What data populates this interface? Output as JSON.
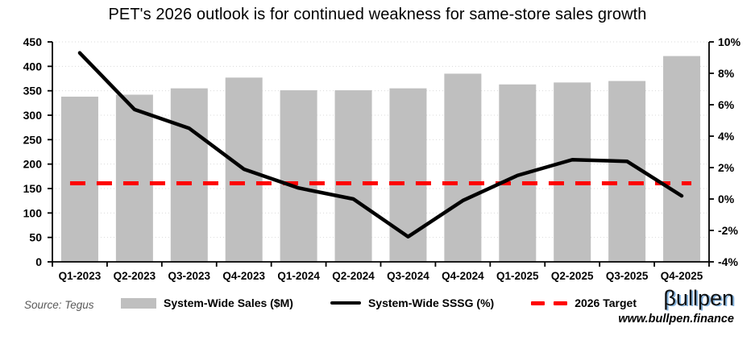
{
  "title": "PET's 2026 outlook is for continued weakness for same-store sales growth",
  "source": "Source: Tegus",
  "branding": {
    "logo": "βullpen",
    "url": "www.bullpen.finance"
  },
  "colors": {
    "bar": "#BFBFBF",
    "line": "#000000",
    "target": "#FF0000",
    "gridline": "#D9D9D9",
    "axis": "#000000"
  },
  "chart_data": {
    "type": "bar",
    "subtype": "bar+line combo, dual axis",
    "title": "PET's 2026 outlook is for continued weakness for same-store sales growth",
    "categories": [
      "Q1-2023",
      "Q2-2023",
      "Q3-2023",
      "Q4-2023",
      "Q1-2024",
      "Q2-2024",
      "Q3-2024",
      "Q4-2024",
      "Q1-2025",
      "Q2-2025",
      "Q3-2025",
      "Q4-2025"
    ],
    "series": [
      {
        "name": "System-Wide Sales ($M)",
        "type": "bar",
        "axis": "left",
        "color": "#BFBFBF",
        "values": [
          338,
          342,
          355,
          377,
          351,
          351,
          355,
          385,
          363,
          367,
          370,
          421
        ]
      },
      {
        "name": "System-Wide SSSG (%)",
        "type": "line",
        "axis": "right",
        "color": "#000000",
        "values": [
          9.3,
          5.7,
          4.5,
          1.9,
          0.7,
          0.0,
          -2.4,
          -0.1,
          1.5,
          2.5,
          2.4,
          0.2
        ]
      },
      {
        "name": "2026 Target",
        "type": "dashed-constant-line",
        "axis": "right",
        "color": "#FF0000",
        "value": 1.0
      }
    ],
    "left_axis": {
      "min": 0,
      "max": 450,
      "step": 50,
      "suffix": ""
    },
    "right_axis": {
      "min": -4,
      "max": 10,
      "step": 2,
      "suffix": "%"
    },
    "grid": true,
    "legend_position": "bottom"
  }
}
